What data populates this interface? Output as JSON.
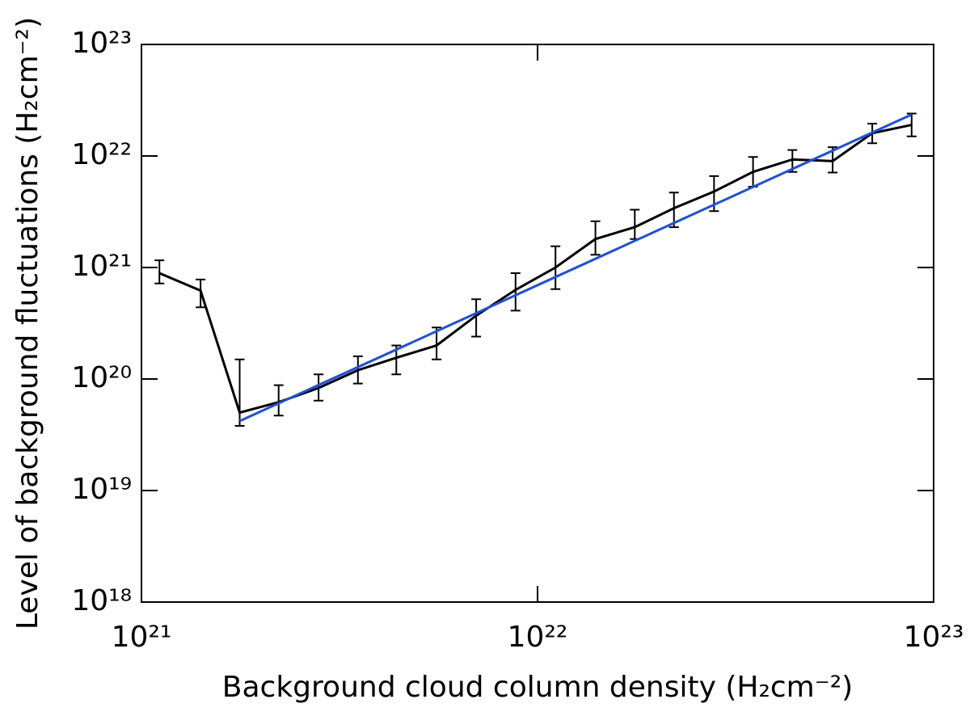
{
  "chart_data": {
    "type": "line",
    "xlabel": "Background cloud column density (H₂cm⁻²)",
    "ylabel": "Level of background fluctuations (H₂cm⁻²)",
    "xlog": true,
    "ylog": true,
    "xlim": [
      1e+21,
      1e+23
    ],
    "ylim": [
      1e+18,
      1e+23
    ],
    "xticks": [
      {
        "value": 1e+21,
        "label": "10²¹"
      },
      {
        "value": 1e+22,
        "label": "10²²"
      },
      {
        "value": 1e+23,
        "label": "10²³"
      }
    ],
    "yticks": [
      {
        "value": 1e+18,
        "label": "10¹⁸"
      },
      {
        "value": 1e+19,
        "label": "10¹⁹"
      },
      {
        "value": 1e+20,
        "label": "10²⁰"
      },
      {
        "value": 1e+21,
        "label": "10²¹"
      },
      {
        "value": 1e+22,
        "label": "10²²"
      },
      {
        "value": 1e+23,
        "label": "10²³"
      }
    ],
    "series": [
      {
        "color": "#000000",
        "x": [
          1.11e+21,
          1.41e+21,
          1.77e+21,
          2.22e+21,
          2.8e+21,
          3.52e+21,
          4.4e+21,
          5.56e+21,
          7e+21,
          8.8e+21,
          1.11e+22,
          1.4e+22,
          1.76e+22,
          2.21e+22,
          2.79e+22,
          3.5e+22,
          4.4e+22,
          5.56e+22,
          7e+22,
          8.8e+22
        ],
        "values": [
          8.9e+20,
          6.2e+20,
          5e+19,
          6.2e+19,
          8.3e+19,
          1.2e+20,
          1.55e+20,
          2e+20,
          3.7e+20,
          6.3e+20,
          1e+21,
          1.8e+21,
          2.3e+21,
          3.4e+21,
          4.8e+21,
          7.2e+21,
          9.3e+21,
          9e+21,
          1.6e+22,
          1.9e+22
        ],
        "error_low": [
          7.2e+20,
          4.4e+20,
          3.8e+19,
          4.7e+19,
          6.4e+19,
          9.1e+19,
          1.1e+20,
          1.5e+20,
          2.4e+20,
          4.1e+20,
          6.4e+20,
          1.3e+21,
          1.8e+21,
          2.3e+21,
          3.2e+21,
          5.3e+21,
          7.2e+21,
          7.1e+21,
          1.3e+22,
          1.5e+22
        ],
        "error_high": [
          1.16e+21,
          7.8e+20,
          1.5e+20,
          8.8e+19,
          1.1e+20,
          1.6e+20,
          2e+20,
          2.9e+20,
          5.2e+20,
          8.9e+20,
          1.55e+21,
          2.6e+21,
          3.3e+21,
          4.7e+21,
          6.6e+21,
          9.8e+21,
          1.13e+22,
          1.2e+22,
          1.95e+22,
          2.4e+22
        ]
      },
      {
        "color": "#1f50d8",
        "x": [
          1.77e+21,
          8.8e+22
        ],
        "values": [
          4.2e+19,
          2.35e+22
        ]
      }
    ]
  }
}
